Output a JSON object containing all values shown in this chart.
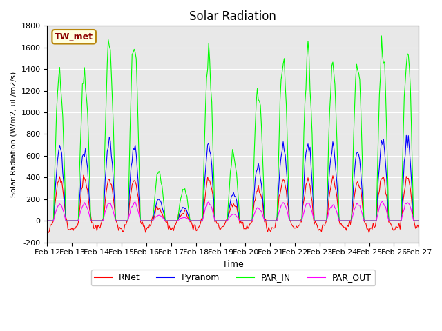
{
  "title": "Solar Radiation",
  "ylabel": "Solar Radiation (W/m2, uE/m2/s)",
  "xlabel": "Time",
  "annotation": "TW_met",
  "ylim": [
    -200,
    1800
  ],
  "yticks": [
    -200,
    0,
    200,
    400,
    600,
    800,
    1000,
    1200,
    1400,
    1600,
    1800
  ],
  "x_labels": [
    "Feb 12",
    "Feb 13",
    "Feb 14",
    "Feb 15",
    "Feb 16",
    "Feb 17",
    "Feb 18",
    "Feb 19",
    "Feb 20",
    "Feb 21",
    "Feb 22",
    "Feb 23",
    "Feb 24",
    "Feb 25",
    "Feb 26",
    "Feb 27"
  ],
  "series": [
    "RNet",
    "Pyranom",
    "PAR_IN",
    "PAR_OUT"
  ],
  "colors": [
    "red",
    "blue",
    "lime",
    "magenta"
  ],
  "background_color": "#e8e8e8",
  "noise_scale": 0.05,
  "par_in_peaks": [
    1400,
    1400,
    1650,
    1650,
    450,
    300,
    1500,
    600,
    1200,
    1500,
    1500,
    1450,
    1450,
    1600,
    1600
  ],
  "pyranom_peaks": [
    650,
    650,
    700,
    700,
    200,
    120,
    700,
    250,
    500,
    700,
    700,
    700,
    650,
    750,
    750
  ],
  "rnet_peaks": [
    400,
    380,
    380,
    380,
    120,
    80,
    380,
    150,
    300,
    380,
    380,
    380,
    350,
    400,
    400
  ],
  "par_out_peaks": [
    150,
    150,
    160,
    160,
    50,
    30,
    160,
    60,
    120,
    160,
    160,
    150,
    150,
    170,
    170
  ]
}
